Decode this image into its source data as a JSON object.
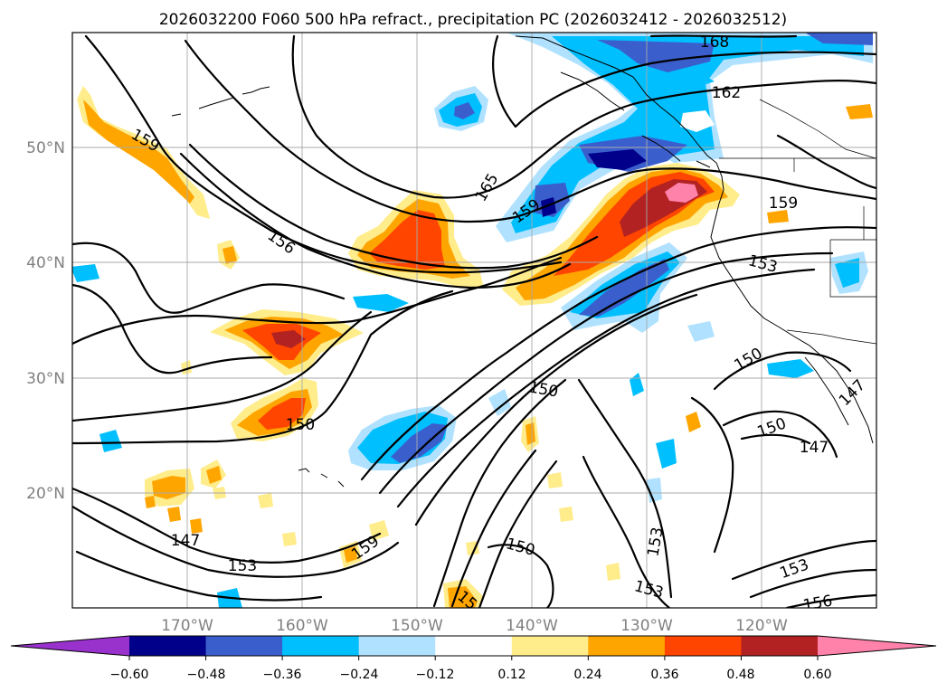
{
  "title": "2026032200 F060 500 hPa refract., precipitation PC (2026032412 - 2026032512)",
  "axes": {
    "lon_labels": [
      "170°W",
      "160°W",
      "150°W",
      "140°W",
      "130°W",
      "120°W"
    ],
    "lat_labels": [
      "50°N",
      "40°N",
      "30°N",
      "20°N"
    ],
    "lon_range": [
      -180,
      -110
    ],
    "lat_range": [
      10,
      60
    ],
    "grid": true
  },
  "colorbar": {
    "orientation": "horizontal",
    "extend": "both",
    "tick_labels": [
      "−0.60",
      "−0.48",
      "−0.36",
      "−0.24",
      "−0.12",
      "0.12",
      "0.24",
      "0.36",
      "0.48",
      "0.60"
    ],
    "colors": [
      "#9932cc",
      "#00008b",
      "#3a5fcd",
      "#00bfff",
      "#b0e2ff",
      "#ffffff",
      "#ffec8b",
      "#ffa500",
      "#ff4500",
      "#b22222",
      "#ff82ab"
    ]
  },
  "contours": {
    "field": "500 hPa refractivity",
    "labels": [
      {
        "value": "168",
        "lon": -129.2,
        "lat": 59.1
      },
      {
        "value": "162",
        "lon": -127.8,
        "lat": 55.3
      },
      {
        "value": "165",
        "lon": -144.5,
        "lat": 45.2
      },
      {
        "value": "159",
        "lon": -140.5,
        "lat": 42.6
      },
      {
        "value": "159",
        "lon": -176.1,
        "lat": 48.9
      },
      {
        "value": "159",
        "lon": -121.8,
        "lat": 43.8
      },
      {
        "value": "156",
        "lon": -162.9,
        "lat": 41.7
      },
      {
        "value": "153",
        "lon": -121.5,
        "lat": 38.0
      },
      {
        "value": "150",
        "lon": -121.4,
        "lat": 31.7
      },
      {
        "value": "150",
        "lon": -141.0,
        "lat": 29.0
      },
      {
        "value": "150",
        "lon": -161.0,
        "lat": 25.7
      },
      {
        "value": "150",
        "lon": -118.8,
        "lat": 25.9
      },
      {
        "value": "147",
        "lon": -117.2,
        "lat": 24.3
      },
      {
        "value": "147",
        "lon": -112.8,
        "lat": 28.9
      },
      {
        "value": "147",
        "lon": -169.9,
        "lat": 14.8
      },
      {
        "value": "153",
        "lon": -164.4,
        "lat": 13.6
      },
      {
        "value": "159",
        "lon": -153.5,
        "lat": 14.7
      },
      {
        "value": "150",
        "lon": -142.2,
        "lat": 14.4
      },
      {
        "value": "153",
        "lon": -129.0,
        "lat": 15.0
      },
      {
        "value": "153",
        "lon": -129.0,
        "lat": 11.5
      },
      {
        "value": "153",
        "lon": -117.8,
        "lat": 13.3
      },
      {
        "value": "156",
        "lon": -115.4,
        "lat": 10.5
      },
      {
        "value": "15",
        "lon": -146.4,
        "lat": 10.6
      }
    ]
  },
  "precip_pc_regions": [
    {
      "name": "gulf-of-alaska-negative",
      "level": -0.36
    },
    {
      "name": "pacific-northwest-positive",
      "level": 0.6
    },
    {
      "name": "subtropical-jet-negative",
      "level": -0.36
    },
    {
      "name": "central-pacific-positive",
      "level": 0.36
    }
  ]
}
